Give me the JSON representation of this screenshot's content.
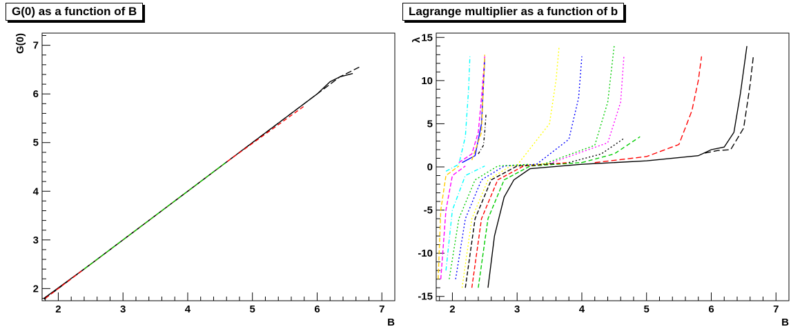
{
  "chart_data": [
    {
      "type": "line",
      "title": "G(0) as a function of B",
      "xlabel": "B",
      "ylabel": "G(0)",
      "xlim": [
        1.75,
        7.2
      ],
      "ylim": [
        1.75,
        7.25
      ],
      "x_ticks": [
        2,
        3,
        4,
        5,
        6,
        7
      ],
      "y_ticks": [
        2,
        3,
        4,
        5,
        6,
        7
      ],
      "grid": false,
      "series": [
        {
          "color": "#000000",
          "dash": "",
          "x": [
            1.78,
            2.5,
            3.0,
            3.3,
            3.6,
            4.5,
            5.5,
            6.0,
            6.2,
            6.35,
            6.55
          ],
          "y": [
            1.8,
            2.5,
            3.0,
            3.3,
            3.6,
            4.5,
            5.5,
            6.0,
            6.25,
            6.35,
            6.42
          ]
        },
        {
          "color": "#000000",
          "dash": "9,4",
          "x": [
            1.78,
            2.8,
            3.8,
            4.8,
            5.8,
            6.35,
            6.65
          ],
          "y": [
            1.78,
            2.8,
            3.8,
            4.8,
            5.8,
            6.35,
            6.55
          ]
        },
        {
          "color": "#ff0000",
          "dash": "6,4",
          "x": [
            1.8,
            3.2,
            4.6,
            5.8
          ],
          "y": [
            1.8,
            3.2,
            4.6,
            5.75
          ]
        },
        {
          "color": "#00cc00",
          "dash": "6,4",
          "x": [
            2.4,
            3.5,
            4.6
          ],
          "y": [
            2.4,
            3.5,
            4.6
          ]
        }
      ]
    },
    {
      "type": "line",
      "title": "Lagrange multiplier as a function of b",
      "xlabel": "B",
      "ylabel": "λ",
      "xlim": [
        1.75,
        7.2
      ],
      "ylim": [
        -15.5,
        15.5
      ],
      "x_ticks": [
        2,
        3,
        4,
        5,
        6,
        7
      ],
      "y_ticks": [
        -15,
        -10,
        -5,
        0,
        5,
        10,
        15
      ],
      "grid": false,
      "series": [
        {
          "color": "#000000",
          "dash": "",
          "x": [
            2.55,
            2.65,
            2.8,
            2.95,
            3.2,
            4.0,
            5.0,
            5.8,
            6.0,
            6.2,
            6.35,
            6.45,
            6.55
          ],
          "y": [
            -14,
            -8,
            -3.5,
            -1.5,
            -0.2,
            0.3,
            0.7,
            1.3,
            2.0,
            2.3,
            4.0,
            8.5,
            14
          ]
        },
        {
          "color": "#000000",
          "dash": "9,4",
          "x": [
            5.9,
            6.1,
            6.3,
            6.5,
            6.6,
            6.65
          ],
          "y": [
            1.6,
            1.9,
            2.0,
            4.5,
            9.5,
            12.8
          ]
        },
        {
          "color": "#ff0000",
          "dash": "8,4",
          "x": [
            4.2,
            5.0,
            5.5,
            5.7,
            5.8,
            5.85
          ],
          "y": [
            0.5,
            1.2,
            2.6,
            6.5,
            10,
            12.8
          ]
        },
        {
          "color": "#00cc00",
          "dash": "6,4",
          "x": [
            4.0,
            4.5,
            4.9
          ],
          "y": [
            0.5,
            1.5,
            3.5
          ]
        },
        {
          "color": "#000000",
          "dash": "2,3",
          "x": [
            3.8,
            4.3,
            4.65
          ],
          "y": [
            0.5,
            1.5,
            3.3
          ]
        },
        {
          "color": "#ff00ff",
          "dash": "2,3",
          "x": [
            3.5,
            4.4,
            4.6,
            4.65
          ],
          "y": [
            0.4,
            2.8,
            7.5,
            12.8
          ]
        },
        {
          "color": "#00cc00",
          "dash": "2,3",
          "x": [
            3.4,
            4.2,
            4.4,
            4.5
          ],
          "y": [
            0.3,
            2.5,
            7.5,
            14
          ]
        },
        {
          "color": "#0000ff",
          "dash": "2,3",
          "x": [
            3.3,
            3.8,
            3.95,
            4.0
          ],
          "y": [
            0.3,
            3.2,
            8.0,
            12.8
          ]
        },
        {
          "color": "#ffff00",
          "dash": "2,3",
          "x": [
            3.0,
            3.5,
            3.6,
            3.65
          ],
          "y": [
            0.2,
            5.0,
            10.0,
            14.0
          ]
        },
        {
          "color": "#000000",
          "dash": "4,3,1,3",
          "x": [
            2.4,
            2.48,
            2.5,
            2.52
          ],
          "y": [
            1.5,
            2.5,
            4.0,
            6.2
          ]
        },
        {
          "color": "#ff00ff",
          "dash": "6,3",
          "x": [
            2.1,
            2.3,
            2.4,
            2.45,
            2.5
          ],
          "y": [
            0.5,
            1.5,
            4,
            8,
            12.8
          ]
        },
        {
          "color": "#0000ff",
          "dash": "",
          "x": [
            2.15,
            2.35,
            2.45,
            2.5
          ],
          "y": [
            0.5,
            1.3,
            5,
            12.5
          ]
        },
        {
          "color": "#00ffff",
          "dash": "6,3,1,3",
          "x": [
            1.9,
            2.1,
            2.2,
            2.25,
            2.27
          ],
          "y": [
            -0.5,
            0.3,
            3.5,
            9.0,
            12.8
          ]
        },
        {
          "color": "#ffcc00",
          "dash": "6,3",
          "x": [
            2.3,
            2.45,
            2.48,
            2.5
          ],
          "y": [
            0.8,
            4.0,
            9.5,
            13.0
          ]
        },
        {
          "color": "#00cc00",
          "dash": "6,3",
          "x": [
            2.4,
            2.55,
            2.8,
            3.2,
            4.0
          ],
          "y": [
            -14,
            -6,
            -1.5,
            0.1,
            0.5
          ]
        },
        {
          "color": "#ff0000",
          "dash": "6,3",
          "x": [
            2.3,
            2.45,
            2.7,
            3.1,
            3.8
          ],
          "y": [
            -14,
            -6,
            -1.5,
            0.1,
            0.5
          ]
        },
        {
          "color": "#000000",
          "dash": "6,3",
          "x": [
            2.2,
            2.35,
            2.6,
            3.0,
            3.6
          ],
          "y": [
            -14,
            -6,
            -1.5,
            0.1,
            0.4
          ]
        },
        {
          "color": "#ffff00",
          "dash": "2,3",
          "x": [
            2.15,
            2.3,
            2.55,
            2.9,
            3.5
          ],
          "y": [
            -14,
            -6,
            -1.5,
            0.1,
            0.4
          ]
        },
        {
          "color": "#0000ff",
          "dash": "2,3",
          "x": [
            2.05,
            2.2,
            2.45,
            2.8,
            3.3
          ],
          "y": [
            -13,
            -6,
            -1.5,
            0.1,
            0.3
          ]
        },
        {
          "color": "#00cc00",
          "dash": "2,3",
          "x": [
            1.95,
            2.1,
            2.35,
            2.7,
            3.2
          ],
          "y": [
            -13,
            -6,
            -1.5,
            0.1,
            0.3
          ]
        },
        {
          "color": "#00ffff",
          "dash": "6,3,1,3",
          "x": [
            1.9,
            2.0,
            2.2,
            2.5
          ],
          "y": [
            -12,
            -5,
            -1.0,
            0.1
          ]
        },
        {
          "color": "#ff00ff",
          "dash": "6,3",
          "x": [
            1.82,
            1.9,
            2.0,
            2.2
          ],
          "y": [
            -13,
            -5,
            -1,
            0.1
          ]
        },
        {
          "color": "#ffcc00",
          "dash": "6,3",
          "x": [
            1.78,
            1.82,
            1.9,
            2.1
          ],
          "y": [
            -13,
            -5,
            -1,
            0.1
          ]
        }
      ]
    }
  ]
}
